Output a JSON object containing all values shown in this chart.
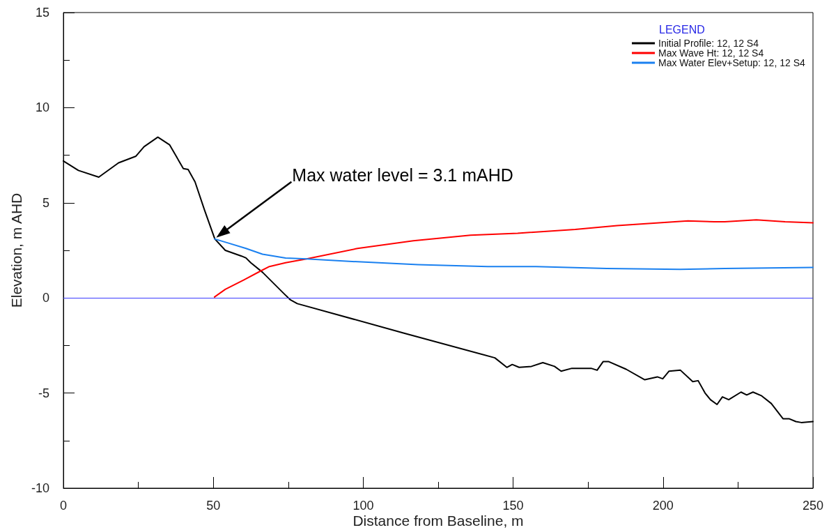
{
  "chart_data": {
    "type": "line",
    "xlabel": "Distance from Baseline, m",
    "ylabel": "Elevation, m AHD",
    "legend_title": "LEGEND",
    "xlim": [
      0,
      250
    ],
    "xticks": [
      0,
      {
        "value": 25,
        "label": null
      },
      50,
      {
        "value": 75,
        "label": null
      },
      100,
      {
        "value": 125,
        "label": null
      },
      150,
      {
        "value": 175,
        "label": null
      },
      200,
      {
        "value": 225,
        "label": null
      },
      250
    ],
    "ylim": [
      -10,
      15
    ],
    "yticks": [
      -10,
      {
        "value": -7.5,
        "label": null
      },
      -5,
      {
        "value": -2.5,
        "label": null
      },
      0,
      {
        "value": 2.5,
        "label": null
      },
      5,
      {
        "value": 7.5,
        "label": null
      },
      10,
      {
        "value": 12.5,
        "label": null
      },
      15
    ],
    "series": [
      {
        "name": "Initial Profile: 12, 12 S4",
        "color": "#000000",
        "x": [
          0,
          5,
          11.8,
          18.4,
          24.2,
          26.9,
          31.5,
          35.4,
          40.0,
          41.6,
          43.9,
          47.0,
          50.5,
          54.0,
          59.4,
          60.9,
          62.5,
          66.4,
          73.4,
          75.7,
          78.0,
          113.6,
          143.9,
          147.9,
          149.7,
          152.0,
          156.1,
          159.9,
          163.8,
          166.0,
          169.6,
          176.0,
          178.0,
          180.0,
          181.9,
          187.7,
          193.9,
          198.1,
          199.9,
          202.0,
          205.8,
          209.9,
          211.7,
          214.0,
          215.8,
          218.0,
          219.8,
          221.9,
          226.0,
          227.9,
          230.0,
          232.9,
          236.1,
          240.0,
          242.0,
          244.3,
          246.1,
          250
        ],
        "values": [
          7.2,
          6.7,
          6.35,
          7.1,
          7.45,
          7.95,
          8.45,
          8.05,
          6.8,
          6.75,
          6.1,
          4.65,
          3.1,
          2.5,
          2.2,
          2.1,
          1.85,
          1.35,
          0.25,
          -0.1,
          -0.3,
          -1.85,
          -3.15,
          -3.65,
          -3.5,
          -3.65,
          -3.6,
          -3.4,
          -3.6,
          -3.85,
          -3.7,
          -3.7,
          -3.8,
          -3.35,
          -3.35,
          -3.75,
          -4.3,
          -4.15,
          -4.25,
          -3.85,
          -3.8,
          -4.4,
          -4.35,
          -5.0,
          -5.35,
          -5.6,
          -5.2,
          -5.35,
          -4.95,
          -5.1,
          -4.95,
          -5.15,
          -5.55,
          -6.35,
          -6.35,
          -6.5,
          -6.55,
          -6.5
        ]
      },
      {
        "name": "Max Wave Ht: 12, 12 S4",
        "color": "#ff0000",
        "x": [
          50.4,
          54.0,
          60.2,
          65.6,
          68.7,
          74.1,
          81.1,
          98.1,
          116.7,
          135.8,
          151.5,
          170.7,
          184.7,
          194.3,
          208.3,
          217.1,
          220.6,
          231.1,
          240.7,
          250
        ],
        "values": [
          0.05,
          0.45,
          0.95,
          1.4,
          1.65,
          1.85,
          2.05,
          2.6,
          3.0,
          3.3,
          3.4,
          3.6,
          3.8,
          3.9,
          4.05,
          4.0,
          4.0,
          4.1,
          4.0,
          3.95
        ]
      },
      {
        "name": "Max Water Elev+Setup: 12, 12 S4",
        "color": "#1a80f0",
        "x": [
          50.4,
          54.7,
          60.9,
          66.4,
          74.1,
          81.1,
          98.1,
          118.3,
          141.5,
          157.6,
          181.2,
          205.7,
          220.6,
          250
        ],
        "values": [
          3.1,
          2.9,
          2.6,
          2.3,
          2.1,
          2.05,
          1.9,
          1.75,
          1.65,
          1.65,
          1.55,
          1.5,
          1.55,
          1.6
        ]
      }
    ],
    "ref_lines": [
      {
        "axis": "y",
        "value": 0,
        "color": "#3b3bff"
      }
    ],
    "annotations": [
      {
        "text": "Max water level = 3.1 mAHD",
        "x": 50.5,
        "y": 3.1
      }
    ],
    "legend": "top right",
    "marker": "none",
    "line_style": "solid"
  }
}
